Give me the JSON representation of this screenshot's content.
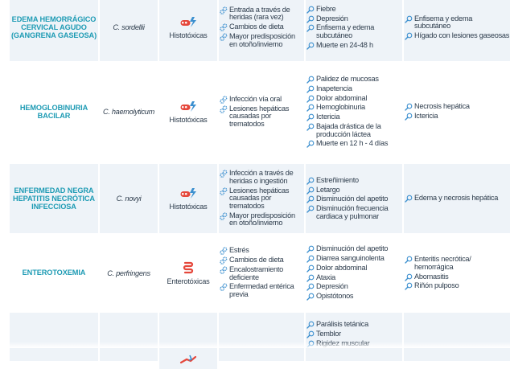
{
  "rows": [
    {
      "disease": "EDEMA HEMORRÁGICO CERVICAL AGUDO (GANGRENA GASEOSA)",
      "species": "C. sordellii",
      "toxin_type": "Histotóxicas",
      "toxin_icon": "histotoxic-bacteria-icon",
      "factors": [
        "Entrada a través de heridas (rara vez)",
        "Cambios de dieta",
        "Mayor predisposición en otoño/invierno"
      ],
      "symptoms": [
        "Fiebre",
        "Depresión",
        "Enfisema y edema subcutáneo",
        "Muerte en 24-48 h"
      ],
      "lesions": [
        "Enfisema y edema subcutáneo",
        "Hígado con lesiones gaseosas"
      ]
    },
    {
      "disease": "HEMOGLOBINURIA BACILAR",
      "species": "C. haemolyticum",
      "toxin_type": "Histotóxicas",
      "toxin_icon": "histotoxic-bacteria-icon",
      "factors": [
        "Infección vía oral",
        "Lesiones hepáticas causadas por trematodos"
      ],
      "symptoms": [
        "Palidez de mucosas",
        "Inapetencia",
        "Dolor abdominal",
        "Hemoglobinuria",
        "Ictericia",
        "Bajada drástica de la producción láctea",
        "Muerte en 12 h - 4 días"
      ],
      "lesions": [
        "Necrosis hepática",
        "Ictericia"
      ]
    },
    {
      "disease": "ENFERMEDAD NEGRA HEPATITIS NECRÓTICA INFECCIOSA",
      "species": "C. novyi",
      "toxin_type": "Histotóxicas",
      "toxin_icon": "histotoxic-bacteria-icon",
      "factors": [
        "Infección a través de heridas o ingestión",
        "Lesiones hepáticas causadas por trematodos",
        "Mayor predisposición en otoño/invierno"
      ],
      "symptoms": [
        "Estreñimiento",
        "Letargo",
        "Disminución del apetito",
        "Disminución frecuencia cardiaca y pulmonar"
      ],
      "lesions": [
        "Edema y necrosis hepática"
      ]
    },
    {
      "disease": "ENTEROTOXEMIA",
      "species": "C. perfringens",
      "toxin_type": "Enterotóxicas",
      "toxin_icon": "intestine-icon",
      "factors": [
        "Estrés",
        "Cambios de dieta",
        "Encalostramiento deficiente",
        "Enfermedad entérica previa"
      ],
      "symptoms": [
        "Disminución del apetito",
        "Diarrea sanguinolenta",
        "Dolor abdominal",
        "Ataxia",
        "Depresión",
        "Opistótonos"
      ],
      "lesions": [
        "Enteritis necrótica/ hemorrágica",
        "Abomasitis",
        "Riñón pulposo"
      ]
    },
    {
      "disease": "",
      "species": "",
      "toxin_type": "",
      "toxin_icon": "neurotoxic-icon",
      "factors": [],
      "symptoms": [
        "Parálisis tetánica",
        "Temblor",
        "Rigidez muscular"
      ],
      "lesions": []
    }
  ],
  "colors": {
    "disease_title": "#1e9bb4",
    "icon_blue": "#3b8fcf",
    "icon_red": "#e5473b",
    "row_shade": "#eef3f8",
    "text": "#2d3c4c"
  }
}
